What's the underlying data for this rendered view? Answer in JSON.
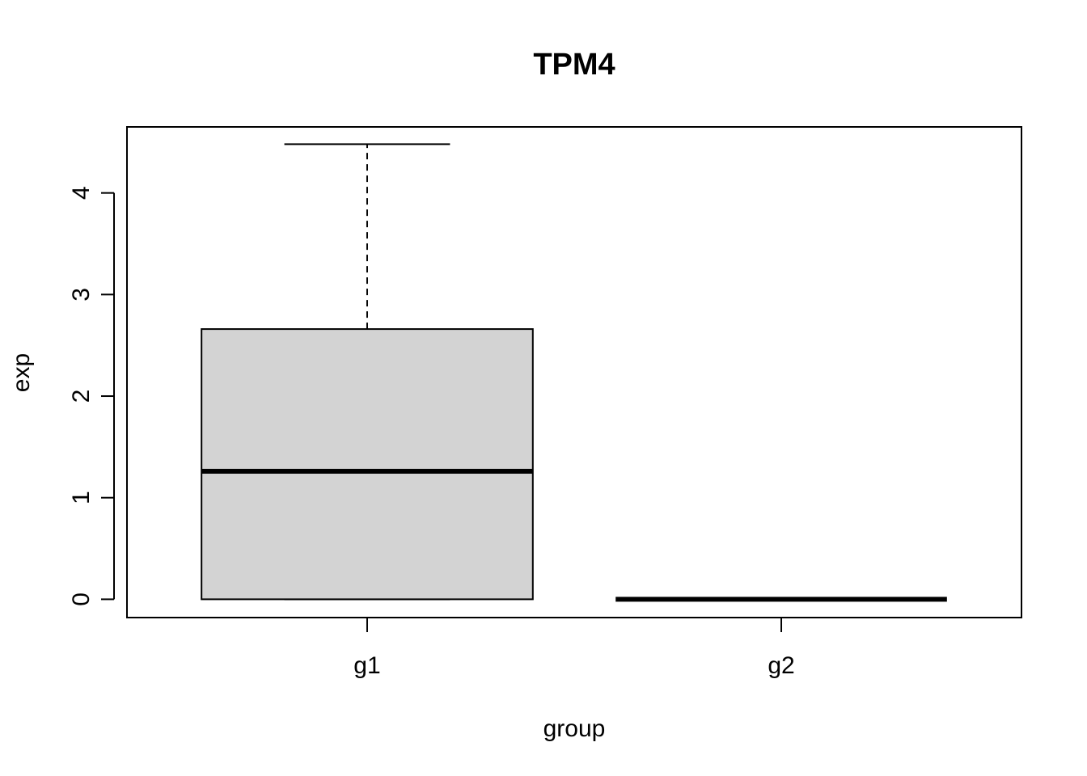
{
  "chart_data": {
    "type": "boxplot",
    "title": "TPM4",
    "xlabel": "group",
    "ylabel": "exp",
    "categories": [
      "g1",
      "g2"
    ],
    "y_ticks": [
      "0",
      "1",
      "2",
      "3",
      "4"
    ],
    "ylim": [
      -0.18,
      4.65
    ],
    "grid": false,
    "boxes": [
      {
        "category": "g1",
        "whisker_low": 0,
        "q1": 0,
        "median": 1.26,
        "q3": 2.66,
        "whisker_high": 4.48
      },
      {
        "category": "g2",
        "whisker_low": 0,
        "q1": 0,
        "median": 0,
        "q3": 0,
        "whisker_high": 0
      }
    ],
    "colors": {
      "box_fill": "#d3d3d3",
      "line": "#000000"
    }
  }
}
